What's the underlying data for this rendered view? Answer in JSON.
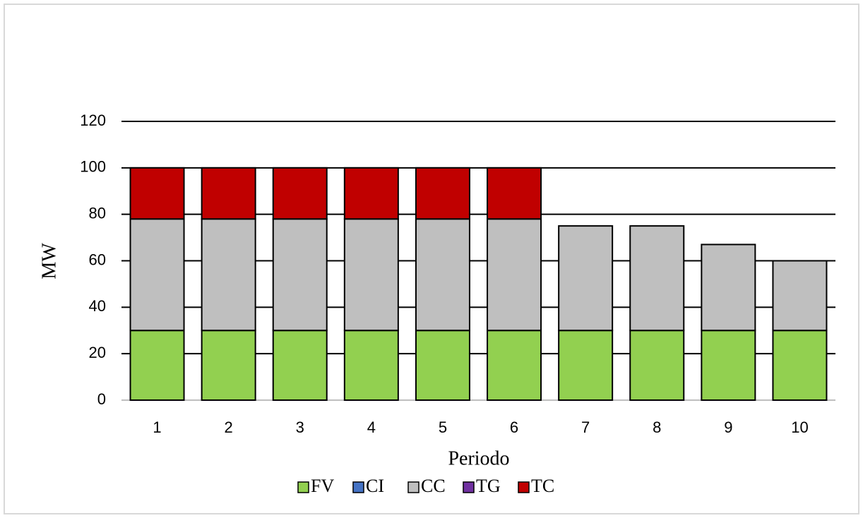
{
  "chart_data": {
    "type": "bar",
    "stacked": true,
    "x_label": "Periodo",
    "y_label": "MW",
    "categories": [
      "1",
      "2",
      "3",
      "4",
      "5",
      "6",
      "7",
      "8",
      "9",
      "10"
    ],
    "series": [
      {
        "name": "FV",
        "color": "#92d050",
        "values": [
          30,
          30,
          30,
          30,
          30,
          30,
          30,
          30,
          30,
          30
        ]
      },
      {
        "name": "CI",
        "color": "#4472c4",
        "values": [
          0,
          0,
          0,
          0,
          0,
          0,
          0,
          0,
          0,
          0
        ]
      },
      {
        "name": "CC",
        "color": "#bfbfbf",
        "values": [
          48,
          48,
          48,
          48,
          48,
          48,
          45,
          45,
          37,
          30
        ]
      },
      {
        "name": "TG",
        "color": "#7030a0",
        "values": [
          0,
          0,
          0,
          0,
          0,
          0,
          0,
          0,
          0,
          0
        ]
      },
      {
        "name": "TC",
        "color": "#c00000",
        "values": [
          22,
          22,
          22,
          22,
          22,
          22,
          0,
          0,
          0,
          0
        ]
      }
    ],
    "ylim": [
      0,
      120
    ],
    "yticks": [
      0,
      20,
      40,
      60,
      80,
      100,
      120
    ],
    "grid": true,
    "legend": "bottom"
  }
}
